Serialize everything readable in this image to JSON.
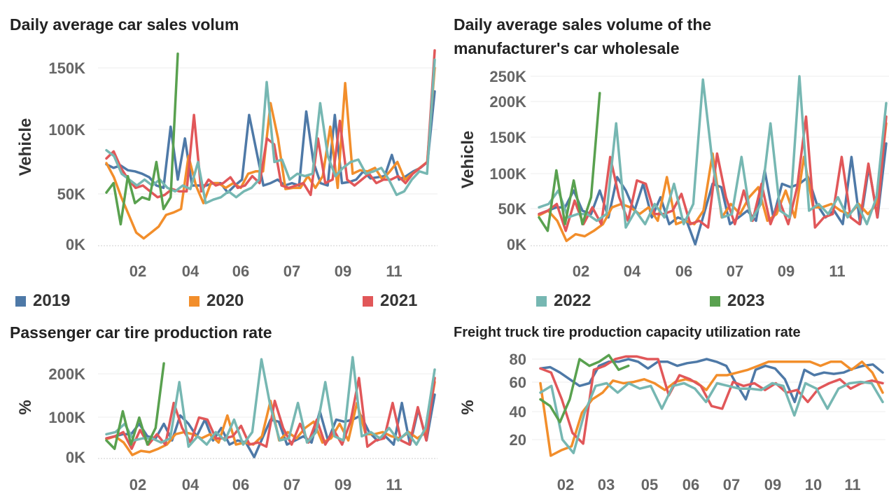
{
  "chart_data": [
    {
      "type": "line",
      "title": "Daily average car sales volum",
      "ylabel": "Vehicle",
      "xlabel": "",
      "x_ticks": [
        "02",
        "04",
        "06",
        "07",
        "09",
        "11"
      ],
      "y_ticks": [
        "0K",
        "50K",
        "100K",
        "150K"
      ],
      "ylim": [
        0,
        160000
      ],
      "series": [
        {
          "name": "2019",
          "values": [
            68000,
            65000,
            67000,
            63000,
            62000,
            60000,
            57000,
            50000,
            48000,
            100000,
            55000,
            90000,
            50000,
            50000,
            50000,
            52000,
            52000,
            44000,
            50000,
            55000,
            110000,
            80000,
            50000,
            52000,
            55000,
            50000,
            52000,
            50000,
            113000,
            70000,
            52000,
            50000,
            110000,
            52000,
            53000,
            55000,
            62000,
            56000,
            57000,
            58000,
            76000,
            55000,
            58000,
            62000,
            65000,
            70000,
            130000
          ]
        },
        {
          "name": "2020",
          "values": [
            69000,
            57000,
            40000,
            25000,
            10000,
            5000,
            10000,
            15000,
            25000,
            27000,
            30000,
            75000,
            50000,
            35000,
            52000,
            52000,
            48000,
            52000,
            48000,
            60000,
            62000,
            62000,
            120000,
            90000,
            47000,
            48000,
            48000,
            58000,
            48000,
            58000,
            100000,
            48000,
            137000,
            60000,
            63000,
            62000,
            65000,
            55000,
            62000,
            70000,
            55000,
            60000,
            65000,
            70000,
            150000
          ]
        },
        {
          "name": "2021",
          "values": [
            73000,
            79000,
            65000,
            55000,
            48000,
            50000,
            45000,
            40000,
            42000,
            47000,
            45000,
            45000,
            110000,
            45000,
            55000,
            50000,
            52000,
            57000,
            48000,
            50000,
            58000,
            52000,
            90000,
            85000,
            50000,
            48000,
            50000,
            52000,
            42000,
            90000,
            52000,
            55000,
            105000,
            55000,
            50000,
            55000,
            60000,
            52000,
            55000,
            55000,
            58000,
            52000,
            60000,
            65000,
            70000,
            190000
          ]
        },
        {
          "name": "2022",
          "values": [
            80000,
            75000,
            60000,
            55000,
            50000,
            55000,
            50000,
            55000,
            48000,
            45000,
            50000,
            47000,
            70000,
            35000,
            38000,
            40000,
            45000,
            40000,
            45000,
            48000,
            55000,
            138000,
            70000,
            72000,
            55000,
            60000,
            58000,
            60000,
            120000,
            75000,
            58000,
            65000,
            70000,
            72000,
            60000,
            62000,
            65000,
            55000,
            42000,
            45000,
            55000,
            62000,
            60000,
            157000
          ]
        },
        {
          "name": "2023",
          "values": [
            44000,
            52000,
            17000,
            58000,
            35000,
            40000,
            38000,
            70000,
            30000,
            40000,
            162000
          ]
        }
      ]
    },
    {
      "type": "line",
      "title": "Daily average sales volume of the manufacturer's car wholesale",
      "ylabel": "Vehicle",
      "xlabel": "",
      "x_ticks": [
        "02",
        "04",
        "06",
        "07",
        "09",
        "11"
      ],
      "y_ticks": [
        "0K",
        "50K",
        "100K",
        "150K",
        "200K",
        "250K"
      ],
      "ylim": [
        0,
        260000
      ],
      "series": [
        {
          "name": "2019",
          "values": [
            45000,
            50000,
            55000,
            55000,
            80000,
            50000,
            45000,
            80000,
            40000,
            100000,
            80000,
            50000,
            90000,
            40000,
            70000,
            30000,
            40000,
            35000,
            0,
            45000,
            90000,
            85000,
            30000,
            40000,
            50000,
            35000,
            110000,
            40000,
            90000,
            85000,
            90000,
            100000,
            60000,
            40000,
            50000,
            30000,
            130000,
            30000,
            115000,
            40000,
            150000
          ]
        },
        {
          "name": "2020",
          "values": [
            43000,
            50000,
            35000,
            5000,
            15000,
            12000,
            20000,
            30000,
            55000,
            60000,
            55000,
            45000,
            55000,
            35000,
            100000,
            30000,
            35000,
            30000,
            50000,
            135000,
            40000,
            60000,
            45000,
            70000,
            85000,
            35000,
            45000,
            80000,
            40000,
            130000,
            55000,
            55000,
            60000,
            50000,
            45000,
            60000,
            45000,
            60000,
            180000
          ]
        },
        {
          "name": "2021",
          "values": [
            45000,
            50000,
            60000,
            20000,
            65000,
            30000,
            55000,
            30000,
            130000,
            70000,
            35000,
            95000,
            90000,
            45000,
            45000,
            50000,
            75000,
            30000,
            35000,
            25000,
            135000,
            70000,
            30000,
            80000,
            35000,
            90000,
            30000,
            65000,
            30000,
            85000,
            190000,
            25000,
            40000,
            45000,
            130000,
            40000,
            30000,
            120000,
            40000,
            190000
          ]
        },
        {
          "name": "2022",
          "values": [
            55000,
            60000,
            80000,
            40000,
            45000,
            45000,
            35000,
            45000,
            180000,
            25000,
            50000,
            30000,
            60000,
            40000,
            90000,
            30000,
            60000,
            245000,
            120000,
            40000,
            45000,
            130000,
            35000,
            60000,
            180000,
            50000,
            40000,
            250000,
            50000,
            60000,
            45000,
            70000,
            40000,
            60000,
            30000,
            70000,
            210000
          ]
        },
        {
          "name": "2023",
          "values": [
            40000,
            20000,
            110000,
            30000,
            95000,
            30000,
            70000,
            225000
          ]
        }
      ]
    },
    {
      "type": "line",
      "title": "Passenger car tire production rate",
      "ylabel": "%",
      "xlabel": "",
      "x_ticks": [
        "02",
        "04",
        "06",
        "07",
        "09",
        "11"
      ],
      "y_ticks": [
        "0K",
        "100K",
        "200K"
      ],
      "ylim": [
        0,
        260000
      ],
      "series": [
        {
          "name": "2019",
          "values": [
            45000,
            50000,
            55000,
            55000,
            80000,
            50000,
            45000,
            80000,
            40000,
            100000,
            80000,
            50000,
            90000,
            40000,
            70000,
            30000,
            40000,
            35000,
            0,
            45000,
            90000,
            85000,
            30000,
            40000,
            50000,
            35000,
            110000,
            40000,
            90000,
            85000,
            90000,
            100000,
            60000,
            40000,
            50000,
            30000,
            130000,
            30000,
            115000,
            40000,
            150000
          ]
        },
        {
          "name": "2020",
          "values": [
            43000,
            50000,
            35000,
            5000,
            15000,
            12000,
            20000,
            30000,
            55000,
            60000,
            55000,
            45000,
            55000,
            35000,
            100000,
            30000,
            35000,
            30000,
            50000,
            135000,
            40000,
            60000,
            45000,
            70000,
            85000,
            35000,
            45000,
            80000,
            40000,
            130000,
            55000,
            55000,
            60000,
            50000,
            45000,
            60000,
            45000,
            60000,
            180000
          ]
        },
        {
          "name": "2021",
          "values": [
            45000,
            50000,
            60000,
            20000,
            65000,
            30000,
            55000,
            30000,
            130000,
            70000,
            35000,
            95000,
            90000,
            45000,
            45000,
            50000,
            75000,
            30000,
            35000,
            25000,
            135000,
            70000,
            30000,
            80000,
            35000,
            90000,
            30000,
            65000,
            30000,
            85000,
            190000,
            25000,
            40000,
            45000,
            130000,
            40000,
            30000,
            120000,
            40000,
            190000
          ]
        },
        {
          "name": "2022",
          "values": [
            55000,
            60000,
            80000,
            40000,
            45000,
            45000,
            35000,
            45000,
            180000,
            25000,
            50000,
            30000,
            60000,
            40000,
            90000,
            30000,
            60000,
            235000,
            120000,
            40000,
            45000,
            130000,
            35000,
            60000,
            180000,
            50000,
            40000,
            240000,
            50000,
            60000,
            45000,
            70000,
            40000,
            60000,
            30000,
            70000,
            210000
          ]
        },
        {
          "name": "2023",
          "values": [
            40000,
            20000,
            110000,
            30000,
            95000,
            30000,
            70000,
            225000
          ]
        }
      ]
    },
    {
      "type": "line",
      "title": "Freight truck tire production capacity utilization rate",
      "ylabel": "%",
      "xlabel": "",
      "x_ticks": [
        "02",
        "03",
        "05",
        "06",
        "07",
        "09",
        "10",
        "11"
      ],
      "y_ticks": [
        "20",
        "40",
        "60",
        "80"
      ],
      "ylim": [
        0,
        85
      ],
      "series": [
        {
          "name": "2019",
          "values": [
            73,
            74,
            70,
            65,
            60,
            62,
            75,
            78,
            78,
            80,
            78,
            73,
            78,
            78,
            75,
            77,
            78,
            80,
            78,
            75,
            62,
            50,
            72,
            75,
            73,
            65,
            48,
            72,
            68,
            70,
            69,
            70,
            73,
            75,
            76,
            70
          ]
        },
        {
          "name": "2020",
          "values": [
            62,
            8,
            12,
            15,
            40,
            50,
            55,
            64,
            62,
            63,
            65,
            62,
            57,
            63,
            65,
            63,
            57,
            68,
            68,
            70,
            72,
            75,
            78,
            78,
            78,
            78,
            78,
            75,
            78,
            78,
            72,
            78,
            70,
            55
          ]
        },
        {
          "name": "2021",
          "values": [
            73,
            70,
            50,
            25,
            17,
            72,
            75,
            80,
            82,
            82,
            80,
            80,
            53,
            68,
            65,
            60,
            45,
            43,
            63,
            60,
            62,
            57,
            62,
            55,
            57,
            48,
            58,
            62,
            65,
            58,
            62,
            64,
            62
          ]
        },
        {
          "name": "2022",
          "values": [
            55,
            60,
            20,
            10,
            40,
            60,
            62,
            55,
            62,
            58,
            60,
            43,
            60,
            62,
            58,
            48,
            62,
            60,
            58,
            58,
            57,
            62,
            60,
            38,
            62,
            58,
            43,
            58,
            62,
            63,
            62,
            48
          ]
        },
        {
          "name": "2023",
          "values": [
            50,
            45,
            33,
            50,
            80,
            75,
            78,
            83,
            72,
            75
          ]
        }
      ]
    }
  ],
  "legend": [
    {
      "label": "2019",
      "color": "#4e79a7"
    },
    {
      "label": "2020",
      "color": "#f28e2b"
    },
    {
      "label": "2021",
      "color": "#e15759"
    },
    {
      "label": "2022",
      "color": "#76b7b2"
    },
    {
      "label": "2023",
      "color": "#59a14f"
    }
  ]
}
